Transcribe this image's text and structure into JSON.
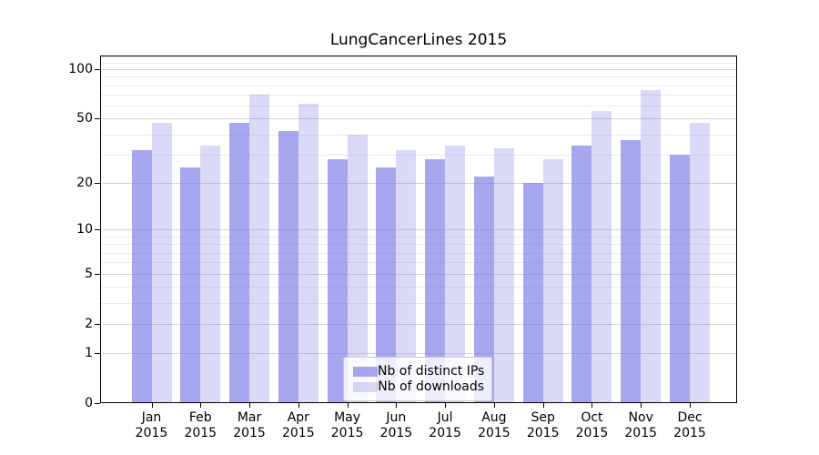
{
  "chart_data": {
    "type": "bar",
    "title": "LungCancerLines 2015",
    "xlabel": "",
    "ylabel": "",
    "year_label": "2015",
    "categories": [
      "Jan",
      "Feb",
      "Mar",
      "Apr",
      "May",
      "Jun",
      "Jul",
      "Aug",
      "Sep",
      "Oct",
      "Nov",
      "Dec"
    ],
    "series": [
      {
        "name": "Nb of distinct IPs",
        "color": "rgba(120,120,230,0.65)",
        "approx_hex": "#a7a7f0",
        "values": [
          32,
          25,
          47,
          42,
          28,
          25,
          28,
          22,
          20,
          34,
          37,
          30
        ]
      },
      {
        "name": "Nb of downloads",
        "color": "rgba(120,120,230,0.27)",
        "approx_hex": "#dadaf8",
        "values": [
          47,
          34,
          70,
          62,
          40,
          32,
          34,
          33,
          28,
          56,
          75,
          47
        ]
      }
    ],
    "yscale": "log1p",
    "ylim": [
      0,
      121
    ],
    "yticks": [
      0,
      1,
      2,
      5,
      10,
      20,
      50,
      100
    ],
    "yminorticks": [
      3,
      4,
      6,
      7,
      8,
      9,
      30,
      40,
      60,
      70,
      80,
      90,
      110,
      120
    ],
    "grid": "on",
    "legend_position": "lower center"
  },
  "colors": {
    "background": "#ffffff",
    "axis": "#000000",
    "grid_major": "#d4d4d4",
    "grid_minor": "#ececec",
    "legend_border": "#cccccc"
  }
}
